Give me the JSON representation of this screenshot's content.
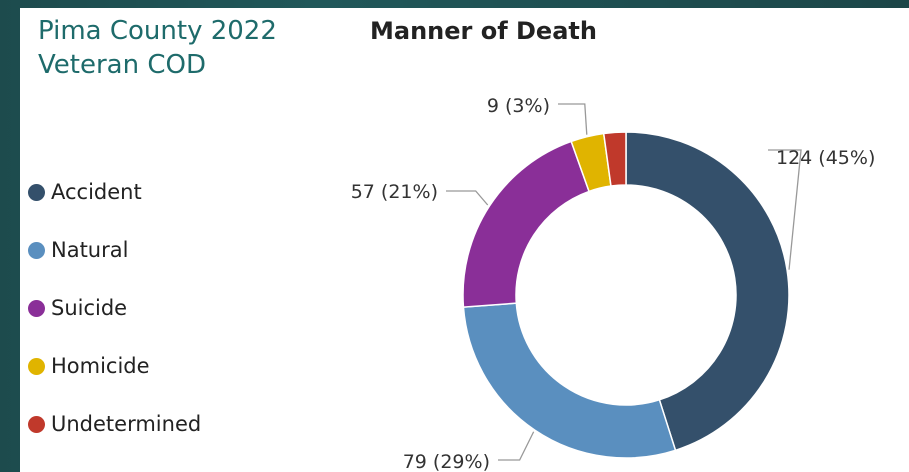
{
  "slide": {
    "title_line1": "Pima County 2022",
    "title_line2": "Veteran COD"
  },
  "chart_data": {
    "type": "pie",
    "variant": "donut",
    "title": "Manner of Death",
    "legend_position": "left",
    "slices": [
      {
        "name": "Accident",
        "value": 124,
        "percent": 45,
        "label": "124 (45%)",
        "color": "#34506b"
      },
      {
        "name": "Natural",
        "value": 79,
        "percent": 29,
        "label": "79 (29%)",
        "color": "#5a8fbf"
      },
      {
        "name": "Suicide",
        "value": 57,
        "percent": 21,
        "label": "57 (21%)",
        "color": "#8a2f98"
      },
      {
        "name": "Homicide",
        "value": 9,
        "percent": 3,
        "label": "9 (3%)",
        "color": "#e0b400"
      },
      {
        "name": "Undetermined",
        "value": 6,
        "percent": 2,
        "label": "",
        "color": "#c0392b"
      }
    ],
    "order_clockwise_from_top": [
      "Accident",
      "Natural",
      "Suicide",
      "Homicide",
      "Undetermined"
    ]
  }
}
